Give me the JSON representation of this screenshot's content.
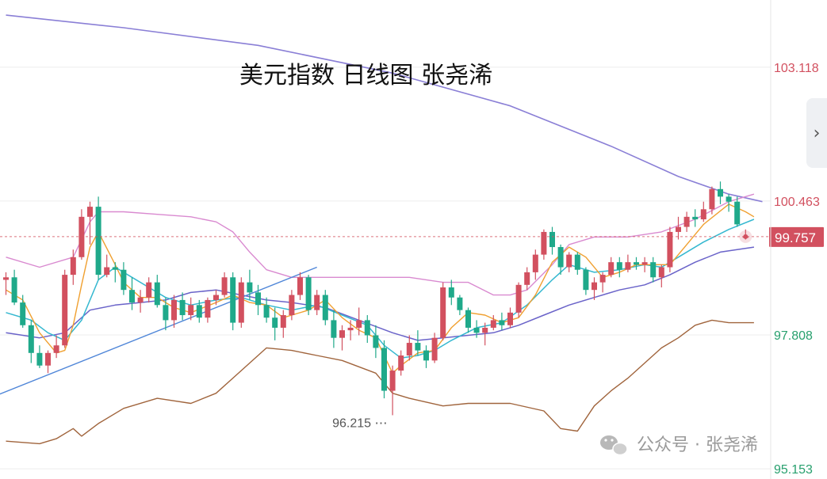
{
  "chart_data": {
    "type": "candlestick",
    "title": "美元指数 日线图 张尧浠",
    "y_ticks": [
      {
        "value": 103.118,
        "label": "103.118",
        "color": "#d2505f"
      },
      {
        "value": 100.463,
        "label": "100.463",
        "color": "#d2505f"
      },
      {
        "value": 97.808,
        "label": "97.808",
        "color": "#28a06e"
      },
      {
        "value": 95.153,
        "label": "95.153",
        "color": "#28a06e"
      }
    ],
    "ylim": [
      94.95,
      104.45
    ],
    "current_price": {
      "value": 99.757,
      "label": "99.757",
      "color": "#d2505f"
    },
    "low_annotation": {
      "value": 96.215,
      "label": "96.215 ⋯"
    },
    "colors": {
      "up": "#d2505f",
      "down": "#1fa98a"
    },
    "candles": [
      [
        98.9,
        99.05,
        98.6,
        98.95
      ],
      [
        98.95,
        99.1,
        98.4,
        98.45
      ],
      [
        98.45,
        98.6,
        97.95,
        98.0
      ],
      [
        98.0,
        98.1,
        97.25,
        97.45
      ],
      [
        97.45,
        97.6,
        97.15,
        97.2
      ],
      [
        97.2,
        97.5,
        97.05,
        97.45
      ],
      [
        97.45,
        97.8,
        97.35,
        97.6
      ],
      [
        97.6,
        99.1,
        97.55,
        99.0
      ],
      [
        99.0,
        99.5,
        98.8,
        99.35
      ],
      [
        99.35,
        100.3,
        99.3,
        100.15
      ],
      [
        100.15,
        100.45,
        99.6,
        100.35
      ],
      [
        100.35,
        100.55,
        98.9,
        99.0
      ],
      [
        99.0,
        99.4,
        98.95,
        99.15
      ],
      [
        99.15,
        99.25,
        98.85,
        99.1
      ],
      [
        99.1,
        99.25,
        98.6,
        98.7
      ],
      [
        98.7,
        98.95,
        98.3,
        98.45
      ],
      [
        98.45,
        98.7,
        98.25,
        98.55
      ],
      [
        98.55,
        98.95,
        98.45,
        98.85
      ],
      [
        98.85,
        99.0,
        98.35,
        98.4
      ],
      [
        98.4,
        98.55,
        97.9,
        98.1
      ],
      [
        98.1,
        98.6,
        97.95,
        98.5
      ],
      [
        98.5,
        98.65,
        98.1,
        98.2
      ],
      [
        98.2,
        98.55,
        98.1,
        98.4
      ],
      [
        98.4,
        98.5,
        98.05,
        98.15
      ],
      [
        98.15,
        98.55,
        98.05,
        98.5
      ],
      [
        98.5,
        98.7,
        98.4,
        98.6
      ],
      [
        98.6,
        99.05,
        98.55,
        98.95
      ],
      [
        98.95,
        99.05,
        97.9,
        98.05
      ],
      [
        98.05,
        98.95,
        97.95,
        98.85
      ],
      [
        98.85,
        99.1,
        98.5,
        98.65
      ],
      [
        98.65,
        98.8,
        98.2,
        98.4
      ],
      [
        98.4,
        98.55,
        98.05,
        98.15
      ],
      [
        98.15,
        98.35,
        97.7,
        97.95
      ],
      [
        97.95,
        98.3,
        97.75,
        98.2
      ],
      [
        98.2,
        98.7,
        98.1,
        98.6
      ],
      [
        98.6,
        99.05,
        98.5,
        98.95
      ],
      [
        98.95,
        99.0,
        98.2,
        98.3
      ],
      [
        98.3,
        98.7,
        98.2,
        98.6
      ],
      [
        98.6,
        98.7,
        98.0,
        98.1
      ],
      [
        98.1,
        98.3,
        97.55,
        97.75
      ],
      [
        97.75,
        98.0,
        97.5,
        97.9
      ],
      [
        97.9,
        98.1,
        97.7,
        97.95
      ],
      [
        97.95,
        98.35,
        97.8,
        98.1
      ],
      [
        98.1,
        98.2,
        97.65,
        97.8
      ],
      [
        97.8,
        98.0,
        97.35,
        97.55
      ],
      [
        97.55,
        97.7,
        96.55,
        96.7
      ],
      [
        96.7,
        97.2,
        96.215,
        97.1
      ],
      [
        97.1,
        97.5,
        97.0,
        97.4
      ],
      [
        97.4,
        97.8,
        97.3,
        97.65
      ],
      [
        97.65,
        97.9,
        97.4,
        97.5
      ],
      [
        97.5,
        97.6,
        97.15,
        97.3
      ],
      [
        97.3,
        97.85,
        97.25,
        97.75
      ],
      [
        97.75,
        98.85,
        97.7,
        98.75
      ],
      [
        98.75,
        98.9,
        98.4,
        98.55
      ],
      [
        98.55,
        98.6,
        98.2,
        98.3
      ],
      [
        98.3,
        98.35,
        97.85,
        97.95
      ],
      [
        97.95,
        98.1,
        97.75,
        97.85
      ],
      [
        97.85,
        98.05,
        97.6,
        97.95
      ],
      [
        97.95,
        98.2,
        97.9,
        98.1
      ],
      [
        98.1,
        98.25,
        97.9,
        98.0
      ],
      [
        98.0,
        98.35,
        97.95,
        98.25
      ],
      [
        98.25,
        98.85,
        98.15,
        98.8
      ],
      [
        98.8,
        99.15,
        98.7,
        99.05
      ],
      [
        99.05,
        99.5,
        98.9,
        99.4
      ],
      [
        99.4,
        99.9,
        99.3,
        99.85
      ],
      [
        99.85,
        99.95,
        99.4,
        99.55
      ],
      [
        99.55,
        99.6,
        99.0,
        99.15
      ],
      [
        99.15,
        99.45,
        99.05,
        99.4
      ],
      [
        99.4,
        99.45,
        99.0,
        99.1
      ],
      [
        99.1,
        99.15,
        98.6,
        98.7
      ],
      [
        98.7,
        98.95,
        98.5,
        98.85
      ],
      [
        98.85,
        99.05,
        98.65,
        99.0
      ],
      [
        99.0,
        99.35,
        98.95,
        99.25
      ],
      [
        99.25,
        99.35,
        98.95,
        99.1
      ],
      [
        99.1,
        99.4,
        99.05,
        99.25
      ],
      [
        99.25,
        99.35,
        99.1,
        99.2
      ],
      [
        99.2,
        99.35,
        99.05,
        99.25
      ],
      [
        99.25,
        99.35,
        98.85,
        98.95
      ],
      [
        98.95,
        99.2,
        98.75,
        99.15
      ],
      [
        99.15,
        99.95,
        99.05,
        99.85
      ],
      [
        99.85,
        100.15,
        99.7,
        99.95
      ],
      [
        99.95,
        100.25,
        99.85,
        100.15
      ],
      [
        100.15,
        100.3,
        99.95,
        100.1
      ],
      [
        100.1,
        100.45,
        100.05,
        100.3
      ],
      [
        100.3,
        100.75,
        100.2,
        100.7
      ],
      [
        100.7,
        100.85,
        100.4,
        100.55
      ],
      [
        100.55,
        100.6,
        100.25,
        100.45
      ],
      [
        100.45,
        100.55,
        99.95,
        100.0
      ],
      [
        99.757,
        99.9,
        99.7,
        99.757
      ]
    ],
    "lines": [
      {
        "name": "MA-long",
        "color": "#8a7fd6",
        "width": 1.6,
        "points": [
          [
            0,
            104.15
          ],
          [
            14,
            103.9
          ],
          [
            30,
            103.55
          ],
          [
            46,
            103.0
          ],
          [
            60,
            102.35
          ],
          [
            72,
            101.55
          ],
          [
            80,
            100.95
          ],
          [
            86,
            100.6
          ],
          [
            90,
            100.45
          ]
        ]
      },
      {
        "name": "Boll-upper",
        "color": "#d98ad0",
        "width": 1.4,
        "points": [
          [
            0,
            99.35
          ],
          [
            4,
            99.15
          ],
          [
            8,
            99.35
          ],
          [
            10,
            100.05
          ],
          [
            11,
            100.25
          ],
          [
            14,
            100.25
          ],
          [
            18,
            100.2
          ],
          [
            22,
            100.15
          ],
          [
            25,
            100.05
          ],
          [
            27,
            99.85
          ],
          [
            29,
            99.45
          ],
          [
            31,
            99.1
          ],
          [
            34,
            98.95
          ],
          [
            40,
            98.95
          ],
          [
            48,
            98.95
          ],
          [
            52,
            98.85
          ],
          [
            55,
            98.85
          ],
          [
            58,
            98.6
          ],
          [
            60,
            98.6
          ],
          [
            62,
            98.7
          ],
          [
            65,
            99.2
          ],
          [
            67,
            99.6
          ],
          [
            70,
            99.75
          ],
          [
            74,
            99.75
          ],
          [
            78,
            99.85
          ],
          [
            82,
            100.1
          ],
          [
            86,
            100.45
          ],
          [
            89,
            100.6
          ]
        ]
      },
      {
        "name": "Boll-lower",
        "color": "#a0643c",
        "width": 1.4,
        "points": [
          [
            0,
            95.7
          ],
          [
            4,
            95.65
          ],
          [
            6,
            95.75
          ],
          [
            8,
            95.95
          ],
          [
            9,
            95.8
          ],
          [
            11,
            96.05
          ],
          [
            14,
            96.35
          ],
          [
            18,
            96.55
          ],
          [
            22,
            96.45
          ],
          [
            25,
            96.65
          ],
          [
            27,
            96.95
          ],
          [
            29,
            97.25
          ],
          [
            31,
            97.55
          ],
          [
            34,
            97.5
          ],
          [
            37,
            97.4
          ],
          [
            40,
            97.3
          ],
          [
            44,
            97.05
          ],
          [
            46,
            96.65
          ],
          [
            48,
            96.55
          ],
          [
            52,
            96.4
          ],
          [
            55,
            96.45
          ],
          [
            60,
            96.45
          ],
          [
            64,
            96.3
          ],
          [
            66,
            95.95
          ],
          [
            68,
            95.9
          ],
          [
            70,
            96.4
          ],
          [
            72,
            96.7
          ],
          [
            74,
            96.95
          ],
          [
            76,
            97.25
          ],
          [
            78,
            97.55
          ],
          [
            80,
            97.75
          ],
          [
            82,
            98.0
          ],
          [
            84,
            98.1
          ],
          [
            86,
            98.05
          ],
          [
            89,
            98.05
          ]
        ]
      },
      {
        "name": "MA-mid",
        "color": "#6a63c9",
        "width": 1.5,
        "points": [
          [
            0,
            97.85
          ],
          [
            4,
            97.75
          ],
          [
            7,
            97.85
          ],
          [
            10,
            98.3
          ],
          [
            13,
            98.4
          ],
          [
            16,
            98.45
          ],
          [
            19,
            98.5
          ],
          [
            22,
            98.65
          ],
          [
            25,
            98.7
          ],
          [
            28,
            98.6
          ],
          [
            31,
            98.5
          ],
          [
            34,
            98.45
          ],
          [
            38,
            98.35
          ],
          [
            42,
            98.1
          ],
          [
            46,
            97.85
          ],
          [
            49,
            97.7
          ],
          [
            52,
            97.75
          ],
          [
            55,
            97.8
          ],
          [
            58,
            97.85
          ],
          [
            61,
            98.0
          ],
          [
            64,
            98.2
          ],
          [
            67,
            98.4
          ],
          [
            70,
            98.55
          ],
          [
            73,
            98.7
          ],
          [
            76,
            98.8
          ],
          [
            79,
            99.0
          ],
          [
            82,
            99.25
          ],
          [
            85,
            99.45
          ],
          [
            89,
            99.55
          ]
        ]
      },
      {
        "name": "MA-short2",
        "color": "#35b8d0",
        "width": 1.5,
        "points": [
          [
            0,
            98.25
          ],
          [
            3,
            98.1
          ],
          [
            5,
            97.85
          ],
          [
            7,
            97.7
          ],
          [
            9,
            98.1
          ],
          [
            11,
            98.9
          ],
          [
            13,
            99.15
          ],
          [
            15,
            98.95
          ],
          [
            17,
            98.75
          ],
          [
            19,
            98.55
          ],
          [
            22,
            98.4
          ],
          [
            25,
            98.5
          ],
          [
            28,
            98.55
          ],
          [
            31,
            98.4
          ],
          [
            34,
            98.3
          ],
          [
            37,
            98.4
          ],
          [
            40,
            98.2
          ],
          [
            43,
            98.0
          ],
          [
            45,
            97.6
          ],
          [
            47,
            97.35
          ],
          [
            49,
            97.4
          ],
          [
            51,
            97.5
          ],
          [
            53,
            97.7
          ],
          [
            56,
            97.95
          ],
          [
            59,
            98.05
          ],
          [
            62,
            98.4
          ],
          [
            65,
            98.9
          ],
          [
            67,
            99.2
          ],
          [
            70,
            99.05
          ],
          [
            73,
            99.1
          ],
          [
            76,
            99.2
          ],
          [
            78,
            99.15
          ],
          [
            80,
            99.35
          ],
          [
            83,
            99.65
          ],
          [
            86,
            99.9
          ],
          [
            89,
            100.1
          ]
        ]
      },
      {
        "name": "MA-short1",
        "color": "#f0a030",
        "width": 1.4,
        "points": [
          [
            0,
            98.7
          ],
          [
            2,
            98.5
          ],
          [
            4,
            97.85
          ],
          [
            6,
            97.45
          ],
          [
            7,
            97.5
          ],
          [
            8,
            98.0
          ],
          [
            9,
            98.8
          ],
          [
            10,
            99.55
          ],
          [
            11,
            99.85
          ],
          [
            13,
            99.2
          ],
          [
            14,
            98.85
          ],
          [
            16,
            98.55
          ],
          [
            18,
            98.55
          ],
          [
            20,
            98.35
          ],
          [
            22,
            98.25
          ],
          [
            25,
            98.45
          ],
          [
            27,
            98.6
          ],
          [
            29,
            98.45
          ],
          [
            31,
            98.4
          ],
          [
            33,
            98.15
          ],
          [
            36,
            98.3
          ],
          [
            38,
            98.5
          ],
          [
            40,
            98.15
          ],
          [
            42,
            97.9
          ],
          [
            44,
            97.75
          ],
          [
            45,
            97.4
          ],
          [
            46,
            97.05
          ],
          [
            47,
            97.2
          ],
          [
            49,
            97.45
          ],
          [
            51,
            97.5
          ],
          [
            53,
            97.95
          ],
          [
            55,
            98.25
          ],
          [
            57,
            98.2
          ],
          [
            59,
            98.05
          ],
          [
            61,
            98.15
          ],
          [
            63,
            98.6
          ],
          [
            65,
            99.25
          ],
          [
            67,
            99.55
          ],
          [
            69,
            99.35
          ],
          [
            71,
            98.95
          ],
          [
            73,
            99.05
          ],
          [
            75,
            99.2
          ],
          [
            77,
            99.2
          ],
          [
            79,
            99.2
          ],
          [
            81,
            99.6
          ],
          [
            83,
            100.0
          ],
          [
            86,
            100.4
          ],
          [
            88,
            100.25
          ],
          [
            89,
            100.15
          ]
        ]
      },
      {
        "name": "Trendline",
        "color": "#4f86d8",
        "width": 1.4,
        "points": [
          [
            -2,
            96.55
          ],
          [
            37,
            99.15
          ]
        ]
      }
    ]
  },
  "watermark": {
    "text": "公众号 · 张尧浠"
  },
  "nav": {
    "next_icon": "chevron-right-icon",
    "next_glyph": "›"
  }
}
